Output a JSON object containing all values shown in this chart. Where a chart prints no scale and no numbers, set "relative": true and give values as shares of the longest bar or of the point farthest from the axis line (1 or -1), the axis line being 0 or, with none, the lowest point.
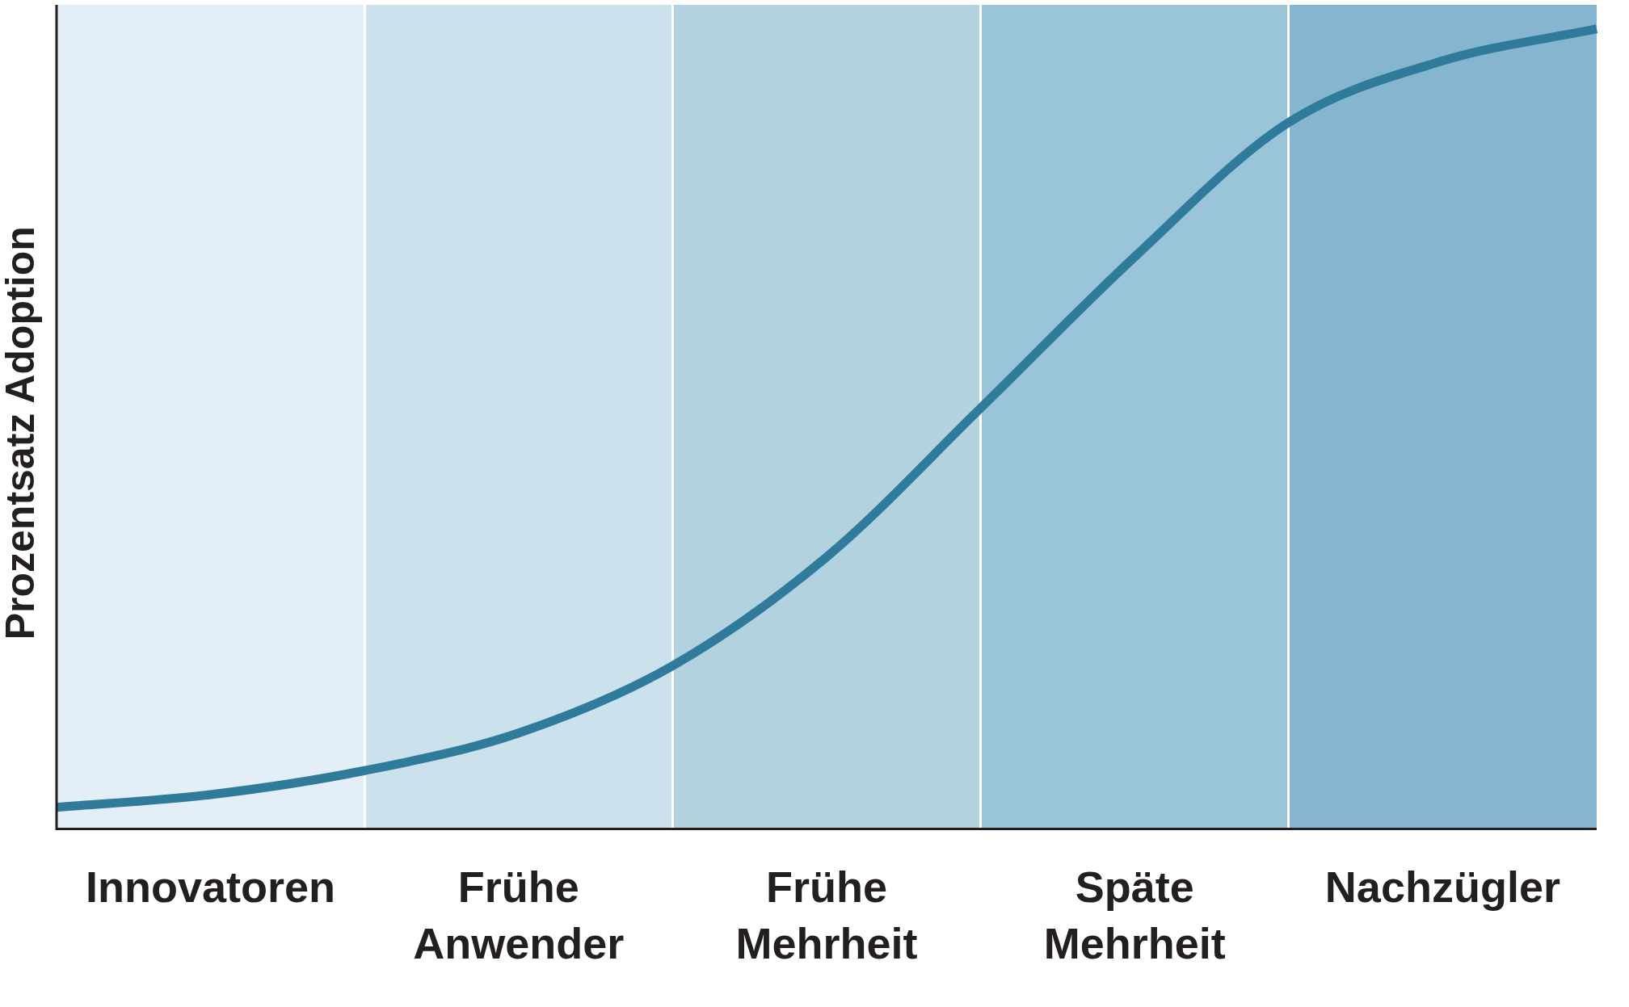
{
  "chart_data": {
    "type": "line",
    "ylabel": "Prozentsatz Adoption",
    "relative": true,
    "tick_labels": "x",
    "legend": false,
    "marker": "none",
    "line_style": "solid",
    "categories": [
      null,
      "Innovatoren",
      null,
      "Frühe Anwender",
      null,
      "Frühe Mehrheit",
      null,
      "Späte Mehrheit",
      null,
      "Nachzügler",
      null
    ],
    "series": [
      {
        "color": "#2e7b9c",
        "values": [
          0.027,
          0.043,
          0.073,
          0.12,
          0.204,
          0.34,
          0.526,
          0.715,
          0.883,
          0.96,
          1
        ]
      }
    ]
  }
}
